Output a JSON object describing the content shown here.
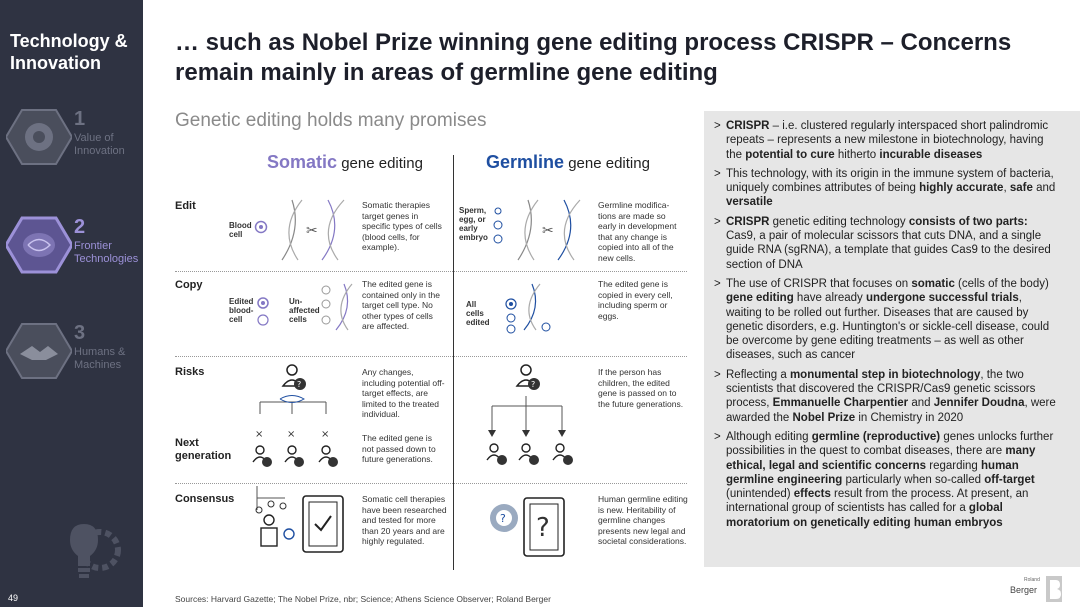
{
  "sidebar": {
    "section_title": "Technology & Innovation",
    "items": [
      {
        "num": "1",
        "label": "Value of Innovation"
      },
      {
        "num": "2",
        "label": "Frontier Technologies"
      },
      {
        "num": "3",
        "label": "Humans & Machines"
      }
    ],
    "page_number": "49"
  },
  "title": "… such as Nobel Prize winning gene editing process CRISPR – Concerns remain mainly in areas of germline gene editing",
  "subtitle": "Genetic editing holds many promises",
  "columns": {
    "somatic": {
      "highlight": "Somatic",
      "rest": " gene editing"
    },
    "germline": {
      "highlight": "Germline",
      "rest": " gene editing"
    }
  },
  "rows": {
    "edit": "Edit",
    "copy": "Copy",
    "risks": "Risks",
    "next_generation": "Next generation",
    "consensus": "Consensus"
  },
  "labels": {
    "blood_cell": "Blood cell",
    "sperm_egg": "Sperm, egg, or early embryo",
    "edited_blood_cell": "Edited blood-cell",
    "unaffected_cells": "Un-affected cells",
    "all_cells_edited": "All cells edited"
  },
  "texts": {
    "somatic_edit": "Somatic therapies target genes in specific types of cells (blood cells, for example).",
    "germline_edit": "Germline modifica-tions are made so early in development that any change is copied into all of the new cells.",
    "somatic_copy": "The edited gene is contained only in the target cell type. No other types of cells are affected.",
    "germline_copy": "The edited gene is copied in every cell, including sperm or eggs.",
    "somatic_risks": "Any changes, including potential off-target effects, are limited to the treated individual.",
    "germline_risks": "If the person has children, the edited gene is passed on to the future generations.",
    "somatic_next": "The edited gene is not passed down to future generations.",
    "somatic_consensus": "Somatic cell therapies have been researched and tested for more than 20 years and are highly regulated.",
    "germline_consensus": "Human germline editing is new. Heritability of germline changes presents new legal and societal considerations."
  },
  "panel_bullets": [
    [
      {
        "t": "CRISPR",
        "b": true
      },
      {
        "t": " – i.e. clustered regularly interspaced short palindromic repeats – represents a new milestone in biotechnology, having the ",
        "b": false
      },
      {
        "t": "potential to cure",
        "b": true
      },
      {
        "t": " hitherto ",
        "b": false
      },
      {
        "t": "incurable diseases",
        "b": true
      }
    ],
    [
      {
        "t": "This technology, with its origin in the immune system of bacteria, uniquely combines attributes of being ",
        "b": false
      },
      {
        "t": "highly accurate",
        "b": true
      },
      {
        "t": ", ",
        "b": false
      },
      {
        "t": "safe",
        "b": true
      },
      {
        "t": " and ",
        "b": false
      },
      {
        "t": "versatile",
        "b": true
      }
    ],
    [
      {
        "t": "CRISPR",
        "b": true
      },
      {
        "t": " genetic editing technology ",
        "b": false
      },
      {
        "t": "consists of two parts:",
        "b": true
      },
      {
        "t": " Cas9, a pair of molecular scissors that cuts DNA, and a single guide RNA (sgRNA), a template that guides Cas9 to the desired section of DNA",
        "b": false
      }
    ],
    [
      {
        "t": "The use of CRISPR that focuses on ",
        "b": false
      },
      {
        "t": "somatic",
        "b": true
      },
      {
        "t": " (cells of the body) ",
        "b": false
      },
      {
        "t": "gene editing",
        "b": true
      },
      {
        "t": " have already ",
        "b": false
      },
      {
        "t": "undergone successful trials",
        "b": true
      },
      {
        "t": ", waiting to be rolled out further. Diseases that are caused by genetic disorders, e.g. Huntington's or sickle-cell disease, could be overcome by gene editing treatments – as well as other diseases, such as cancer",
        "b": false
      }
    ],
    [
      {
        "t": "Reflecting a ",
        "b": false
      },
      {
        "t": "monumental step in biotechnology",
        "b": true
      },
      {
        "t": ", the two scientists that discovered the CRISPR/Cas9 genetic scissors process, ",
        "b": false
      },
      {
        "t": "Emmanuelle Charpentier",
        "b": true
      },
      {
        "t": " and ",
        "b": false
      },
      {
        "t": "Jennifer Doudna",
        "b": true
      },
      {
        "t": ", were awarded the ",
        "b": false
      },
      {
        "t": "Nobel Prize",
        "b": true
      },
      {
        "t": " in Chemistry in 2020",
        "b": false
      }
    ],
    [
      {
        "t": "Although editing ",
        "b": false
      },
      {
        "t": "germline (reproductive)",
        "b": true
      },
      {
        "t": " genes unlocks further possibilities in the quest to combat diseases, there are ",
        "b": false
      },
      {
        "t": "many ethical, legal and scientific concerns",
        "b": true
      },
      {
        "t": " regarding ",
        "b": false
      },
      {
        "t": "human germline engineering",
        "b": true
      },
      {
        "t": " particularly when so-called ",
        "b": false
      },
      {
        "t": "off-target",
        "b": true
      },
      {
        "t": " (unintended) ",
        "b": false
      },
      {
        "t": "effects",
        "b": true
      },
      {
        "t": " result from the process. At present, an international group of scientists has called for a ",
        "b": false
      },
      {
        "t": "global moratorium on genetically editing human embryos",
        "b": true
      }
    ]
  ],
  "sources": "Sources: Harvard Gazette; The Nobel Prize, nbr; Science; Athens Science Observer; Roland Berger",
  "logo": {
    "line1": "Roland",
    "line2": "Berger"
  },
  "colors": {
    "sidebar": "#2f3342",
    "somatic": "#8478c4",
    "germline": "#1f4fa1",
    "panel": "#e6e6e6"
  }
}
